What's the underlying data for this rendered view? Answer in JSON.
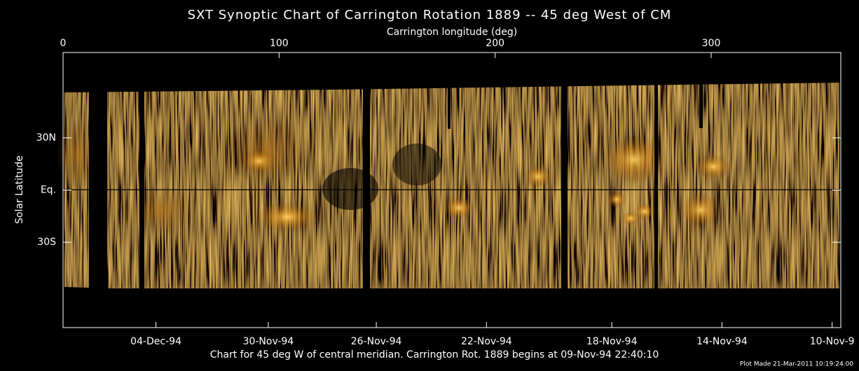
{
  "chart_data": {
    "type": "image",
    "title": "SXT Synoptic Chart of Carrington Rotation 1889 -- 45 deg West of CM",
    "xlabel": "Carrington longitude (deg)",
    "ylabel": "Solar Latitude",
    "xlim": [
      0,
      360
    ],
    "xticks": [
      0,
      100,
      200,
      300
    ],
    "x2ticks": [
      {
        "value": 43,
        "label": "04-Dec-94"
      },
      {
        "value": 95,
        "label": "30-Nov-94"
      },
      {
        "value": 145,
        "label": "26-Nov-94"
      },
      {
        "value": 196,
        "label": "22-Nov-94"
      },
      {
        "value": 254,
        "label": "18-Nov-94"
      },
      {
        "value": 305,
        "label": "14-Nov-94"
      },
      {
        "value": 356,
        "label": "10-Nov-9"
      }
    ],
    "ylim": [
      -79,
      79
    ],
    "yticks": [
      {
        "value": 30,
        "label": "30N"
      },
      {
        "value": 0,
        "label": "Eq."
      },
      {
        "value": -30,
        "label": "30S"
      }
    ],
    "caption": "Chart for 45 deg W of central meridian.  Carrington Rot. 1889 begins at 09-Nov-94 22:40:10",
    "note": "Plot Made 21-Mar-2011 10:19:24.00"
  }
}
